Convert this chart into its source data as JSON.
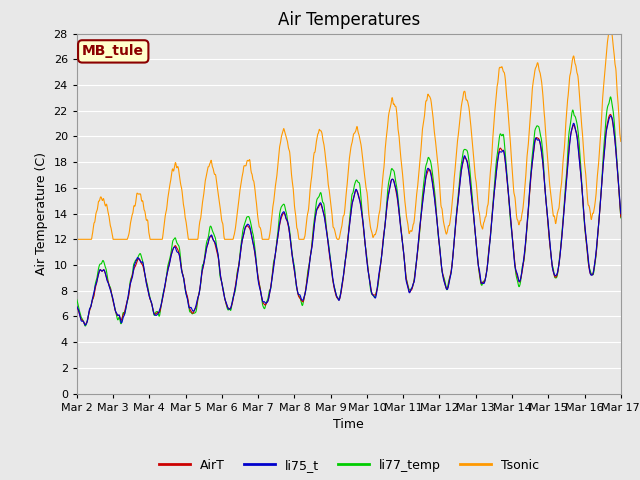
{
  "title": "Air Temperatures",
  "xlabel": "Time",
  "ylabel": "Air Temperature (C)",
  "ylim": [
    0,
    28
  ],
  "yticks": [
    0,
    2,
    4,
    6,
    8,
    10,
    12,
    14,
    16,
    18,
    20,
    22,
    24,
    26,
    28
  ],
  "num_days": 15,
  "annotation_text": "MB_tule",
  "annotation_bg": "#ffffcc",
  "annotation_border": "#8b0000",
  "annotation_text_color": "#8b0000",
  "colors": {
    "AirT": "#cc0000",
    "li75_t": "#0000cc",
    "li77_temp": "#00cc00",
    "Tsonic": "#ff9900"
  },
  "bg_color": "#e8e8e8",
  "plot_bg": "#e8e8e8",
  "grid_color": "#ffffff",
  "title_fontsize": 12,
  "label_fontsize": 9,
  "tick_fontsize": 8,
  "legend_fontsize": 9
}
